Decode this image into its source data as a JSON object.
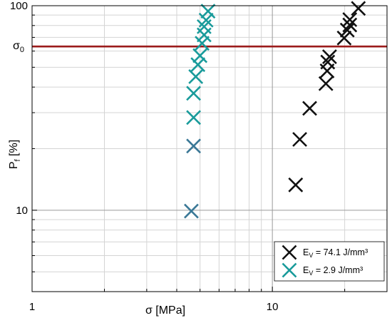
{
  "colors": {
    "series_black": "#111111",
    "series_teal": "#199b9b",
    "series_teal_dark": "#3a7896",
    "ref_line": "#9b1b1b",
    "grid_major": "#9a9a9a",
    "grid_minor": "#d4d4d4"
  },
  "chart_data": {
    "type": "scatter",
    "xscale": "log",
    "yscale": "log",
    "xlim": [
      1,
      30
    ],
    "ylim": [
      4,
      100
    ],
    "grid": true,
    "legend_position": "bottom-right",
    "marker": "x",
    "xlabel": "σ [MPa]",
    "ylabel": {
      "main": "P",
      "sub": "f",
      "rest": " [%]"
    },
    "x_ticks": [
      {
        "value": 1,
        "label": "1"
      },
      {
        "value": 10,
        "label": "10"
      }
    ],
    "y_ticks": [
      {
        "value": 10,
        "label": "10"
      },
      {
        "value": 100,
        "label": "100"
      }
    ],
    "reference_line": {
      "label_main": "σ",
      "label_sub": "0",
      "y": 63.2
    },
    "series": [
      {
        "label_main": "E",
        "label_sub": "V",
        "label_rest": " = 74.1 J/mm³",
        "color": "#111111",
        "points": [
          {
            "x": 12.5,
            "y": 13.3
          },
          {
            "x": 13.0,
            "y": 22.2
          },
          {
            "x": 14.3,
            "y": 31.5
          },
          {
            "x": 16.7,
            "y": 41.6
          },
          {
            "x": 16.9,
            "y": 48.0
          },
          {
            "x": 17.0,
            "y": 53.0
          },
          {
            "x": 17.3,
            "y": 56.3
          },
          {
            "x": 19.9,
            "y": 69.5
          },
          {
            "x": 20.5,
            "y": 76.0
          },
          {
            "x": 21.0,
            "y": 80.5
          },
          {
            "x": 21.0,
            "y": 85.5
          },
          {
            "x": 22.8,
            "y": 97.0
          }
        ]
      },
      {
        "label_main": "E",
        "label_sub": "V",
        "label_rest": " = 2.9 J/mm³",
        "color": "#199b9b",
        "points": [
          {
            "x": 4.6,
            "y": 9.9,
            "color": "#3a7896"
          },
          {
            "x": 4.7,
            "y": 20.6,
            "color": "#3a7896"
          },
          {
            "x": 4.7,
            "y": 28.4
          },
          {
            "x": 4.7,
            "y": 37.3
          },
          {
            "x": 4.8,
            "y": 45.0
          },
          {
            "x": 4.9,
            "y": 51.5
          },
          {
            "x": 5.0,
            "y": 57.0
          },
          {
            "x": 5.1,
            "y": 65.5
          },
          {
            "x": 5.2,
            "y": 72.0
          },
          {
            "x": 5.2,
            "y": 79.0
          },
          {
            "x": 5.3,
            "y": 85.0
          },
          {
            "x": 5.4,
            "y": 94.0
          }
        ]
      }
    ]
  }
}
